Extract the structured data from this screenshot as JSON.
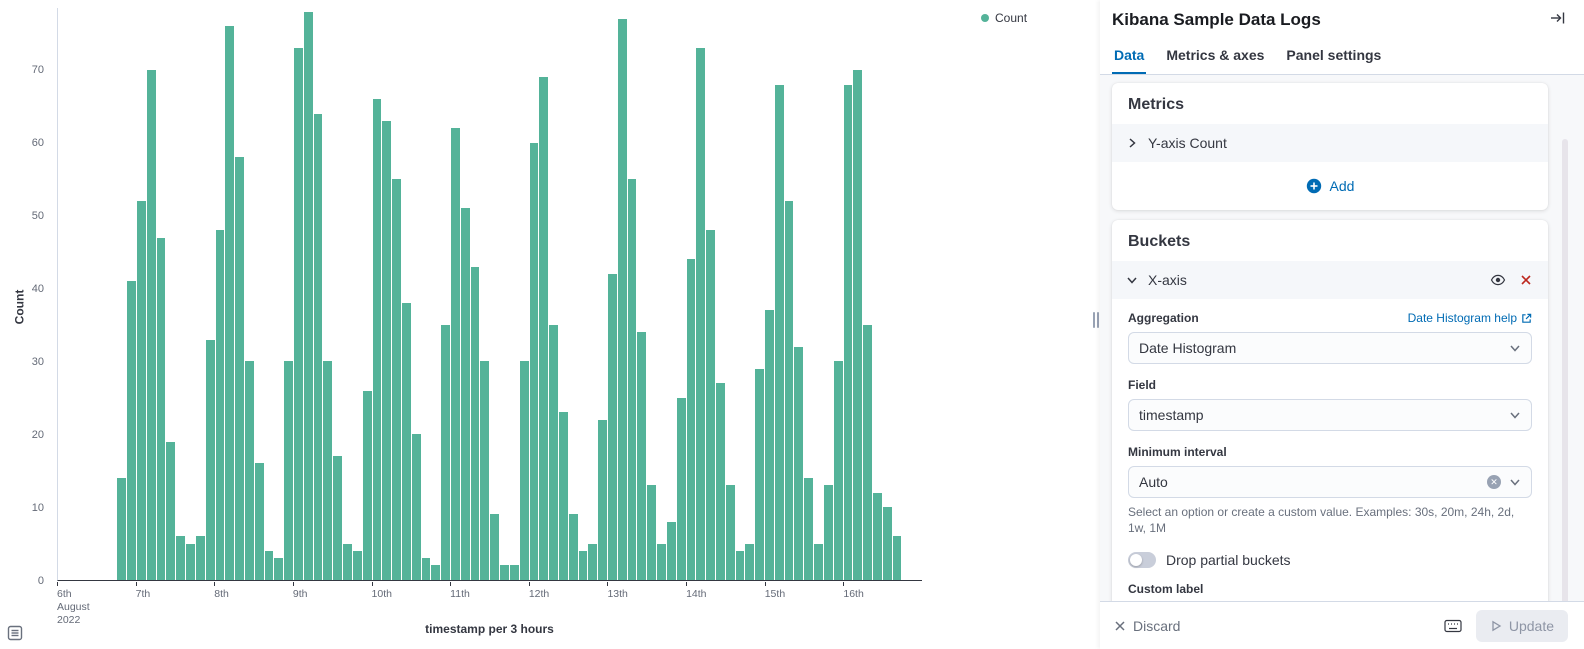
{
  "chart_data": {
    "type": "bar",
    "title": "",
    "xlabel": "timestamp per 3 hours",
    "ylabel": "Count",
    "legend_label": "Count",
    "bar_color": "#54B399",
    "ylim": [
      0,
      78.5
    ],
    "yticks": [
      0,
      10,
      20,
      30,
      40,
      50,
      60,
      70
    ],
    "xticks": [
      [
        "6th",
        "August",
        "2022"
      ],
      [
        "7th"
      ],
      [
        "8th"
      ],
      [
        "9th"
      ],
      [
        "10th"
      ],
      [
        "11th"
      ],
      [
        "12th"
      ],
      [
        "13th"
      ],
      [
        "14th"
      ],
      [
        "15th"
      ],
      [
        "16th"
      ]
    ],
    "grid": false,
    "legend_position": "top-right",
    "values": [
      0,
      0,
      0,
      0,
      0,
      0,
      14,
      41,
      52,
      70,
      47,
      19,
      6,
      5,
      6,
      33,
      48,
      76,
      58,
      30,
      16,
      4,
      3,
      30,
      73,
      78,
      64,
      30,
      17,
      5,
      4,
      26,
      66,
      63,
      55,
      38,
      20,
      3,
      2,
      35,
      62,
      51,
      43,
      30,
      9,
      2,
      2,
      30,
      60,
      69,
      35,
      23,
      9,
      4,
      5,
      22,
      42,
      77,
      55,
      34,
      13,
      5,
      8,
      25,
      44,
      73,
      48,
      27,
      13,
      4,
      5,
      29,
      37,
      68,
      52,
      32,
      14,
      5,
      13,
      30,
      68,
      70,
      35,
      12,
      10,
      6,
      0,
      0
    ]
  },
  "sidebar": {
    "title": "Kibana Sample Data Logs",
    "tabs": [
      {
        "label": "Data"
      },
      {
        "label": "Metrics & axes"
      },
      {
        "label": "Panel settings"
      }
    ],
    "metrics": {
      "heading": "Metrics",
      "row_label": "Y-axis Count",
      "add_label": "Add"
    },
    "buckets": {
      "heading": "Buckets",
      "row_label": "X-axis",
      "aggregation": {
        "label": "Aggregation",
        "help_label": "Date Histogram help",
        "value": "Date Histogram"
      },
      "field": {
        "label": "Field",
        "value": "timestamp"
      },
      "min_interval": {
        "label": "Minimum interval",
        "value": "Auto",
        "help_text": "Select an option or create a custom value. Examples: 30s, 20m, 24h, 2d, 1w, 1M"
      },
      "partial": {
        "label": "Drop partial buckets",
        "on": false
      },
      "custom": {
        "label": "Custom label",
        "value": ""
      }
    },
    "footer": {
      "discard_label": "Discard",
      "update_label": "Update"
    }
  }
}
